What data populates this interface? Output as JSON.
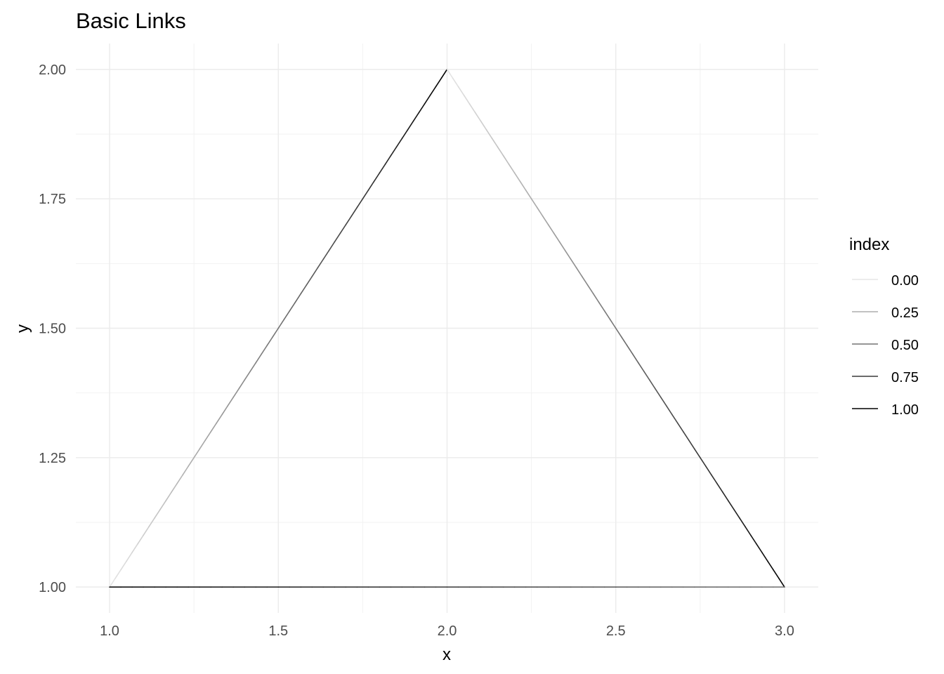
{
  "chart_data": {
    "type": "line",
    "title": "Basic Links",
    "xlabel": "x",
    "ylabel": "y",
    "xlim": [
      0.9,
      3.1
    ],
    "ylim": [
      0.95,
      2.05
    ],
    "x_ticks": [
      1.0,
      1.5,
      2.0,
      2.5,
      3.0
    ],
    "x_tick_labels": [
      "1.0",
      "1.5",
      "2.0",
      "2.5",
      "3.0"
    ],
    "x_minor_ticks": [
      1.25,
      1.75,
      2.25,
      2.75
    ],
    "y_ticks": [
      1.0,
      1.25,
      1.5,
      1.75,
      2.0
    ],
    "y_tick_labels": [
      "1.00",
      "1.25",
      "1.50",
      "1.75",
      "2.00"
    ],
    "y_minor_ticks": [
      1.125,
      1.375,
      1.625,
      1.875
    ],
    "grid": true,
    "legend": {
      "title": "index",
      "placement": "right",
      "entries": [
        {
          "label": "0.00",
          "value": 0.0
        },
        {
          "label": "0.25",
          "value": 0.25
        },
        {
          "label": "0.50",
          "value": 0.5
        },
        {
          "label": "0.75",
          "value": 0.75
        },
        {
          "label": "1.00",
          "value": 1.0
        }
      ]
    },
    "color_scale": {
      "low": "#e6e6e6",
      "high": "#000000"
    },
    "links": [
      {
        "from": [
          1.0,
          1.0
        ],
        "to": [
          2.0,
          2.0
        ],
        "index_from": 0.0,
        "index_to": 1.0
      },
      {
        "from": [
          2.0,
          2.0
        ],
        "to": [
          3.0,
          1.0
        ],
        "index_from": 0.0,
        "index_to": 1.0
      },
      {
        "from": [
          3.0,
          1.0
        ],
        "to": [
          1.0,
          1.0
        ],
        "index_from": 0.5,
        "index_to": 1.0
      }
    ]
  }
}
